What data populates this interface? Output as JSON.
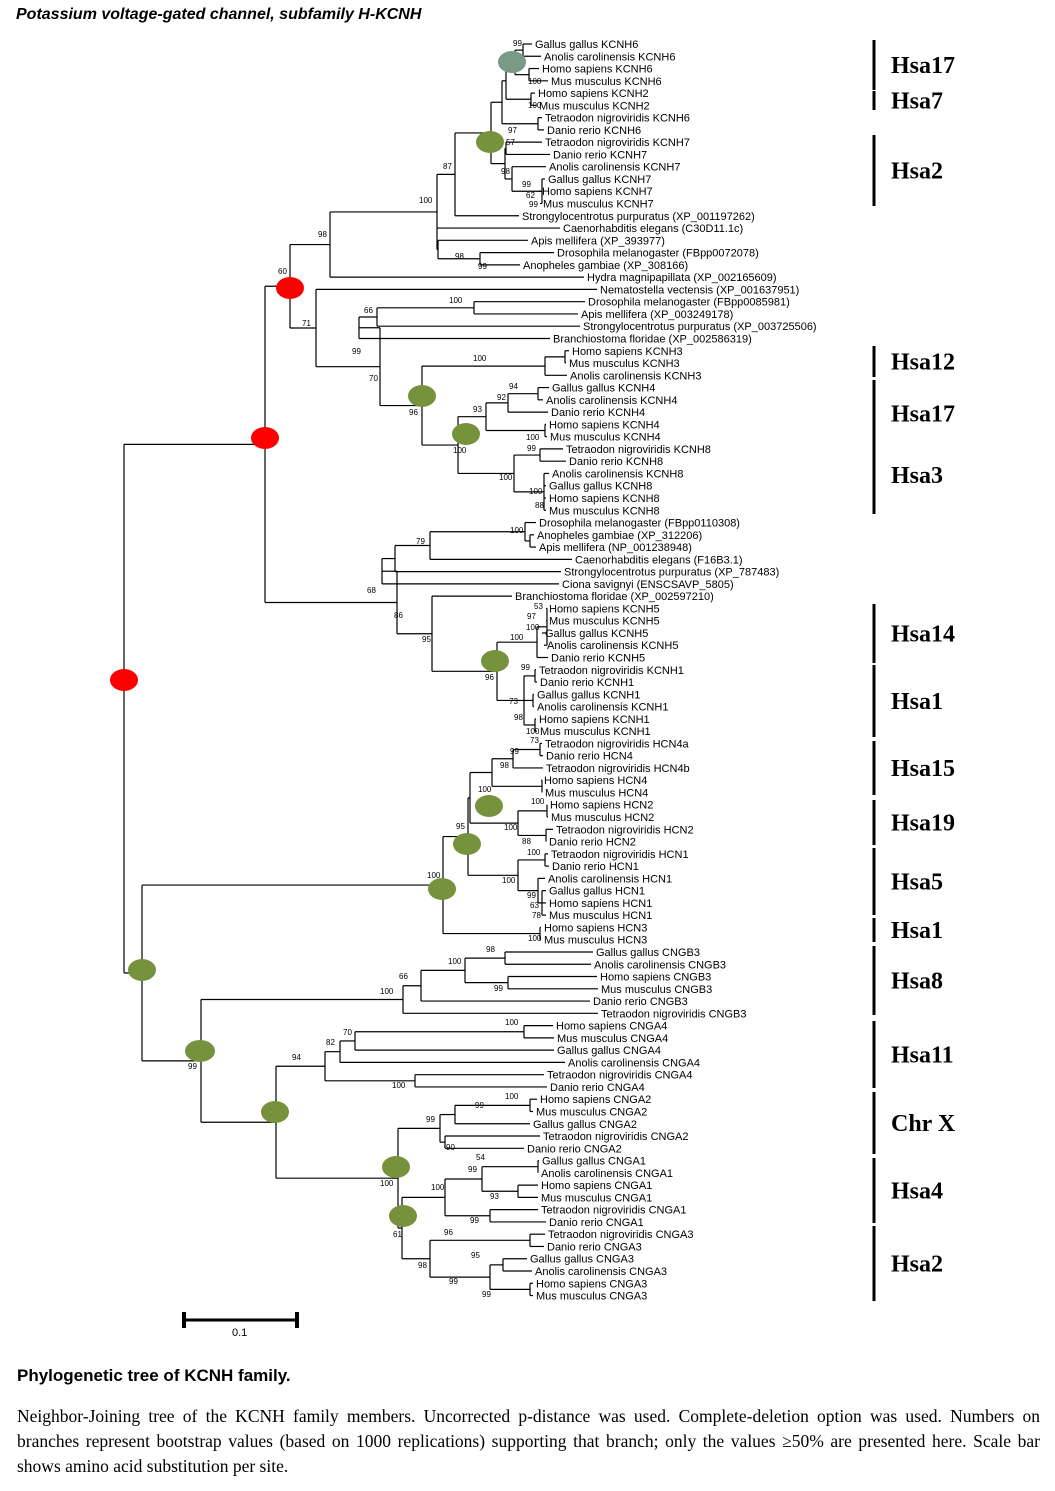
{
  "title": "Potassium voltage-gated channel, subfamily H-KCNH",
  "figure_title": "Phylogenetic tree of KCNH family.",
  "caption": "Neighbor-Joining tree of the KCNH family members. Uncorrected p-distance was used. Complete-deletion option was used. Numbers on branches represent bootstrap values (based on 1000 replications) supporting that branch; only the values ≥50% are presented here. Scale bar shows amino acid substitution per site.",
  "scale_bar_label": "0.1",
  "colors": {
    "red_marker": "#ff0000",
    "green_marker": "#76923c",
    "teal_marker": "#7a9a86",
    "line": "#000000"
  },
  "taxa": [
    "Gallus gallus KCNH6",
    "Anolis carolinensis KCNH6",
    "Homo sapiens KCNH6",
    "Mus musculus KCNH6",
    "Homo sapiens KCNH2",
    "Mus musculus KCNH2",
    "Tetraodon nigroviridis KCNH6",
    "Danio rerio KCNH6",
    "Tetraodon nigroviridis KCNH7",
    "Danio rerio KCNH7",
    "Anolis carolinensis KCNH7",
    "Gallus gallus KCNH7",
    "Homo sapiens KCNH7",
    "Mus musculus KCNH7",
    "Strongylocentrotus purpuratus  (XP_001197262)",
    "Caenorhabditis elegans (C30D11.1c)",
    "Apis mellifera  (XP_393977)",
    "Drosophila melanogaster (FBpp0072078)",
    "Anopheles gambiae (XP_308166)",
    "Hydra magnipapillata (XP_002165609)",
    "Nematostella vectensis (XP_001637951)",
    "Drosophila melanogaster (FBpp0085981)",
    "Apis mellifera (XP_003249178)",
    "Strongylocentrotus purpuratus (XP_003725506)",
    "Branchiostoma floridae (XP_002586319)",
    "Homo sapiens KCNH3",
    "Mus musculus KCNH3",
    "Anolis carolinensis KCNH3",
    "Gallus gallus KCNH4",
    "Anolis carolinensis KCNH4",
    "Danio rerio KCNH4",
    "Homo sapiens KCNH4",
    "Mus musculus KCNH4",
    "Tetraodon nigroviridis KCNH8",
    "Danio rerio KCNH8",
    "Anolis carolinensis KCNH8",
    "Gallus gallus KCNH8",
    "Homo sapiens KCNH8",
    "Mus musculus KCNH8",
    "Drosophila melanogaster (FBpp0110308)",
    "Anopheles gambiae (XP_312206)",
    "Apis mellifera (NP_001238948)",
    "Caenorhabditis elegans (F16B3.1)",
    "Strongylocentrotus purpuratus (XP_787483)",
    "Ciona savignyi (ENSCSAVP_5805)",
    "Branchiostoma floridae (XP_002597210)",
    "Homo sapiens KCNH5",
    "Mus musculus KCNH5",
    "Gallus gallus KCNH5",
    "Anolis carolinensis KCNH5",
    "Danio rerio KCNH5",
    "Tetraodon nigroviridis KCNH1",
    "Danio rerio KCNH1",
    "Gallus gallus KCNH1",
    "Anolis carolinensis KCNH1",
    "Homo sapiens KCNH1",
    "Mus musculus KCNH1",
    "Tetraodon nigroviridis HCN4a",
    "Danio rerio HCN4",
    "Tetraodon nigroviridis HCN4b",
    "Homo sapiens HCN4",
    "Mus musculus HCN4",
    "Homo sapiens HCN2",
    "Mus musculus HCN2",
    "Tetraodon nigroviridis HCN2",
    "Danio rerio HCN2",
    "Tetraodon nigroviridis HCN1",
    "Danio rerio HCN1",
    "Anolis carolinensis HCN1",
    "Gallus gallus HCN1",
    "Homo sapiens HCN1",
    "Mus musculus HCN1",
    "Homo sapiens HCN3",
    "Mus musculus HCN3",
    "Gallus gallus CNGB3",
    "Anolis carolinensis CNGB3",
    "Homo sapiens CNGB3",
    "Mus musculus CNGB3",
    "Danio rerio CNGB3",
    "Tetraodon nigroviridis CNGB3",
    "Homo sapiens CNGA4",
    "Mus musculus CNGA4",
    "Gallus gallus CNGA4",
    "Anolis carolinensis CNGA4",
    "Tetraodon nigroviridis CNGA4",
    "Danio rerio CNGA4",
    "Homo sapiens CNGA2",
    "Mus musculus CNGA2",
    "Gallus gallus CNGA2",
    "Tetraodon nigroviridis CNGA2",
    "Danio rerio CNGA2",
    "Gallus gallus CNGA1",
    "Anolis carolinensis CNGA1",
    "Homo sapiens CNGA1",
    "Mus musculus  CNGA1",
    "Tetraodon nigroviridis CNGA1",
    "Danio rerio CNGA1",
    "Tetraodon nigroviridis CNGA3",
    "Danio rerio CNGA3",
    "Gallus gallus CNGA3",
    "Anolis carolinensis CNGA3",
    "Homo sapiens CNGA3",
    "Mus musculus CNGA3"
  ],
  "bootstrap_values": [
    "99",
    "100",
    "100",
    "97",
    "57",
    "98",
    "99",
    "62",
    "99",
    "87",
    "100",
    "98",
    "98",
    "99",
    "60",
    "71",
    "100",
    "66",
    "99",
    "70",
    "100",
    "94",
    "92",
    "93",
    "100",
    "96",
    "99",
    "100",
    "100",
    "88",
    "100",
    "79",
    "100",
    "68",
    "86",
    "95",
    "53",
    "97",
    "100",
    "100",
    "96",
    "99",
    "73",
    "98",
    "100",
    "73",
    "99",
    "98",
    "100",
    "95",
    "100",
    "100",
    "88",
    "100",
    "100",
    "100",
    "99",
    "63",
    "78",
    "100",
    "98",
    "100",
    "66",
    "99",
    "100",
    "70",
    "82",
    "94",
    "99",
    "100",
    "100",
    "99",
    "99",
    "90",
    "54",
    "99",
    "100",
    "93",
    "99",
    "100",
    "96",
    "95",
    "99",
    "98",
    "99",
    "61",
    "100"
  ],
  "chromosome_labels": [
    "Hsa17",
    "Hsa7",
    "Hsa2",
    "Hsa12",
    "Hsa17",
    "Hsa3",
    "Hsa14",
    "Hsa1",
    "Hsa15",
    "Hsa19",
    "Hsa5",
    "Hsa1",
    "Hsa8",
    "Hsa11",
    "Chr X",
    "Hsa4",
    "Hsa2"
  ]
}
